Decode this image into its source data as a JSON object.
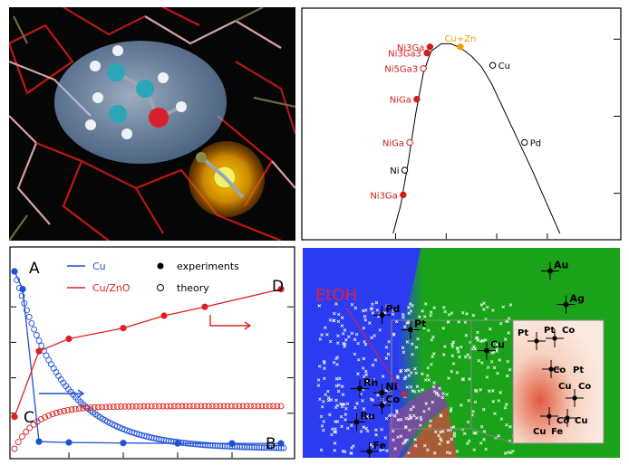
{
  "colors": {
    "cu_blue": "#1f4fd6",
    "cuzno_red": "#e02020",
    "volcano_red": "#d21c1c",
    "volcano_orange": "#f0a000",
    "map_blue": "#2b3cf0",
    "map_green": "#1aa31a",
    "map_peach": "#f7d3c2",
    "etoh_label": "#e0203a"
  },
  "molecule_panel": {
    "description_icon": "molecule-render-icon"
  },
  "chart_data": [
    {
      "type": "scatter",
      "panel": "volcano",
      "points": [
        {
          "label": "Ni3Ga",
          "x": -1.85,
          "y": 0.95,
          "filled": true,
          "color": "#d21c1c"
        },
        {
          "label": "Ni",
          "x": -1.82,
          "y": 1.75,
          "filled": false,
          "color": "#000000"
        },
        {
          "label": "NiGa",
          "x": -1.72,
          "y": 2.65,
          "filled": false,
          "color": "#d21c1c"
        },
        {
          "label": "NiGa",
          "x": -1.58,
          "y": 4.05,
          "filled": true,
          "color": "#d21c1c"
        },
        {
          "label": "Ni5Ga3",
          "x": -1.45,
          "y": 5.05,
          "filled": false,
          "color": "#d21c1c"
        },
        {
          "label": "Ni3Ga3",
          "x": -1.38,
          "y": 5.55,
          "filled": true,
          "color": "#d21c1c"
        },
        {
          "label": "Ni3Ga",
          "x": -1.32,
          "y": 5.75,
          "filled": true,
          "color": "#d21c1c"
        },
        {
          "label": "Cu+Zn",
          "x": -0.72,
          "y": 5.75,
          "filled": true,
          "color": "#f0a000"
        },
        {
          "label": "Cu",
          "x": -0.08,
          "y": 5.15,
          "filled": false,
          "color": "#000000"
        },
        {
          "label": "Pd",
          "x": 0.55,
          "y": 2.65,
          "filled": false,
          "color": "#000000"
        }
      ],
      "curve": [
        [
          -2.05,
          -0.3
        ],
        [
          -1.9,
          0.6
        ],
        [
          -1.75,
          2.0
        ],
        [
          -1.6,
          3.6
        ],
        [
          -1.45,
          4.9
        ],
        [
          -1.3,
          5.6
        ],
        [
          -1.1,
          5.85
        ],
        [
          -0.9,
          5.85
        ],
        [
          -0.7,
          5.7
        ],
        [
          -0.5,
          5.45
        ],
        [
          -0.3,
          5.1
        ],
        [
          -0.1,
          4.55
        ],
        [
          0.1,
          3.85
        ],
        [
          0.3,
          3.15
        ],
        [
          0.5,
          2.45
        ],
        [
          0.7,
          1.75
        ],
        [
          0.9,
          1.0
        ],
        [
          1.1,
          0.25
        ],
        [
          1.25,
          -0.3
        ]
      ],
      "xlim": [
        -3.8,
        2.4
      ],
      "ylim": [
        -0.3,
        6.8
      ],
      "y_ticks": [
        1,
        3.5,
        6
      ]
    },
    {
      "type": "line",
      "panel": "kinetics",
      "legend": {
        "cu": "Cu",
        "cuzno": "Cu/ZnO",
        "experiments": "experiments",
        "theory": "theory"
      },
      "labels": {
        "A": "A",
        "B": "B",
        "C": "C",
        "D": "D"
      },
      "xlim": [
        0,
        10
      ],
      "ylim": [
        0,
        1
      ],
      "cu_experiments": {
        "x": [
          0,
          0.3,
          0.9,
          2.0,
          4.0,
          6.0,
          8.0,
          9.8
        ],
        "y": [
          1.0,
          0.9,
          0.04,
          0.035,
          0.032,
          0.03,
          0.03,
          0.03
        ]
      },
      "cuzno_experiments": {
        "x": [
          0,
          0.9,
          2.0,
          4.0,
          5.5,
          7.0,
          9.8
        ],
        "y": [
          0.18,
          0.55,
          0.62,
          0.68,
          0.75,
          0.8,
          0.9
        ]
      },
      "cu_theory_k": 0.55,
      "cuzno_theory_plateau": 0.24,
      "cuzno_theory_k": 1.2
    },
    {
      "type": "scatter",
      "panel": "alloy-map",
      "etoh_label": "EtOH",
      "metals": [
        {
          "label": "Au",
          "x": 0.78,
          "y": 0.89
        },
        {
          "label": "Ag",
          "x": 0.83,
          "y": 0.73
        },
        {
          "label": "Pd",
          "x": 0.25,
          "y": 0.68
        },
        {
          "label": "Pt",
          "x": 0.34,
          "y": 0.61
        },
        {
          "label": "Cu",
          "x": 0.58,
          "y": 0.51
        },
        {
          "label": "Rh",
          "x": 0.18,
          "y": 0.33
        },
        {
          "label": "Ni",
          "x": 0.25,
          "y": 0.31
        },
        {
          "label": "Co",
          "x": 0.25,
          "y": 0.25
        },
        {
          "label": "Ru",
          "x": 0.17,
          "y": 0.17
        },
        {
          "label": "Fe",
          "x": 0.21,
          "y": 0.03
        }
      ],
      "inset_labels": [
        "Pt",
        "Pt",
        "Co",
        "Co",
        "Pt",
        "Cu",
        "Co",
        "Co",
        "Cu",
        "Cu",
        "Fe"
      ]
    }
  ]
}
